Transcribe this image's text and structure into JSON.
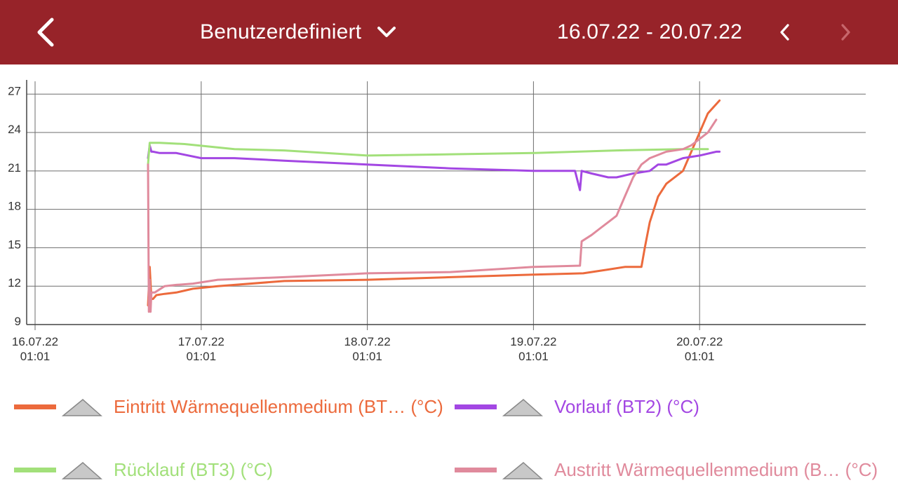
{
  "header": {
    "range_label": "Benutzerdefiniert",
    "date_range": "16.07.22 - 20.07.22"
  },
  "icons": {
    "back": "chevron-left-icon",
    "dropdown": "chevron-down-icon",
    "prev": "chevron-left-icon",
    "next": "chevron-right-icon"
  },
  "colors": {
    "header_bg": "#972329",
    "next_disabled": "#c7666b"
  },
  "legend": [
    {
      "label": "Eintritt Wärmequellenmedium (BT… (°C)",
      "color": "#ec6a3c"
    },
    {
      "label": "Vorlauf (BT2) (°C)",
      "color": "#a347e3"
    },
    {
      "label": "Rücklauf (BT3) (°C)",
      "color": "#a2e07a"
    },
    {
      "label": "Austritt Wärmequellenmedium (B…  (°C)",
      "color": "#e08a9c"
    }
  ],
  "chart_data": {
    "type": "line",
    "x_unit": "days since 16.07.22 01:01",
    "xlim": [
      0,
      5.0
    ],
    "ylim": [
      9,
      28
    ],
    "y_ticks": [
      9,
      12,
      15,
      18,
      21,
      24,
      27
    ],
    "x_ticks": [
      {
        "x": 0,
        "line1": "16.07.22",
        "line2": "01:01"
      },
      {
        "x": 1,
        "line1": "17.07.22",
        "line2": "01:01"
      },
      {
        "x": 2,
        "line1": "18.07.22",
        "line2": "01:01"
      },
      {
        "x": 3,
        "line1": "19.07.22",
        "line2": "01:01"
      },
      {
        "x": 4,
        "line1": "20.07.22",
        "line2": "01:01"
      }
    ],
    "grid": true,
    "series": [
      {
        "name": "Eintritt Wärmequellenmedium (BT… (°C)",
        "color": "#ec6a3c",
        "x": [
          0.68,
          0.69,
          0.7,
          0.71,
          0.73,
          0.78,
          0.85,
          0.95,
          1.1,
          1.5,
          2.0,
          2.5,
          3.0,
          3.3,
          3.45,
          3.55,
          3.65,
          3.67,
          3.7,
          3.75,
          3.8,
          3.9,
          3.95,
          4.0,
          4.05,
          4.12
        ],
        "y": [
          10.5,
          13.5,
          11.0,
          11.0,
          11.3,
          11.4,
          11.5,
          11.8,
          12.0,
          12.4,
          12.5,
          12.7,
          12.9,
          13.0,
          13.3,
          13.5,
          13.5,
          15.0,
          17.0,
          19.0,
          20.0,
          21.0,
          22.5,
          24.0,
          25.5,
          26.5
        ]
      },
      {
        "name": "Vorlauf (BT2) (°C)",
        "color": "#a347e3",
        "x": [
          0.68,
          0.69,
          0.7,
          0.71,
          0.75,
          0.85,
          1.0,
          1.2,
          1.5,
          2.0,
          2.5,
          3.0,
          3.25,
          3.28,
          3.29,
          3.35,
          3.45,
          3.5,
          3.6,
          3.7,
          3.75,
          3.8,
          3.9,
          4.0,
          4.1,
          4.12
        ],
        "y": [
          22.0,
          23.0,
          22.5,
          22.5,
          22.4,
          22.4,
          22.0,
          22.0,
          21.8,
          21.5,
          21.2,
          21.0,
          21.0,
          19.5,
          21.0,
          20.8,
          20.5,
          20.5,
          20.8,
          21.0,
          21.5,
          21.5,
          22.0,
          22.2,
          22.5,
          22.5
        ]
      },
      {
        "name": "Rücklauf (BT3) (°C)",
        "color": "#a2e07a",
        "x": [
          0.68,
          0.69,
          0.75,
          0.9,
          1.2,
          1.5,
          2.0,
          2.5,
          3.0,
          3.5,
          3.9,
          4.05
        ],
        "y": [
          21.5,
          23.2,
          23.2,
          23.1,
          22.7,
          22.6,
          22.2,
          22.3,
          22.4,
          22.6,
          22.7,
          22.7
        ]
      },
      {
        "name": "Austritt Wärmequellenmedium (B…  (°C)",
        "color": "#e08a9c",
        "x": [
          0.68,
          0.685,
          0.69,
          0.695,
          0.7,
          0.72,
          0.78,
          0.85,
          0.95,
          1.1,
          1.5,
          2.0,
          2.5,
          3.0,
          3.28,
          3.29,
          3.35,
          3.4,
          3.45,
          3.5,
          3.55,
          3.6,
          3.65,
          3.7,
          3.8,
          3.9,
          3.95,
          4.0,
          4.05,
          4.1
        ],
        "y": [
          21.5,
          10.0,
          12.5,
          10.0,
          11.5,
          11.5,
          12.0,
          12.1,
          12.2,
          12.5,
          12.7,
          13.0,
          13.1,
          13.5,
          13.6,
          15.5,
          16.0,
          16.5,
          17.0,
          17.5,
          19.0,
          20.5,
          21.5,
          22.0,
          22.5,
          22.7,
          23.0,
          23.5,
          24.0,
          25.0
        ]
      }
    ]
  }
}
